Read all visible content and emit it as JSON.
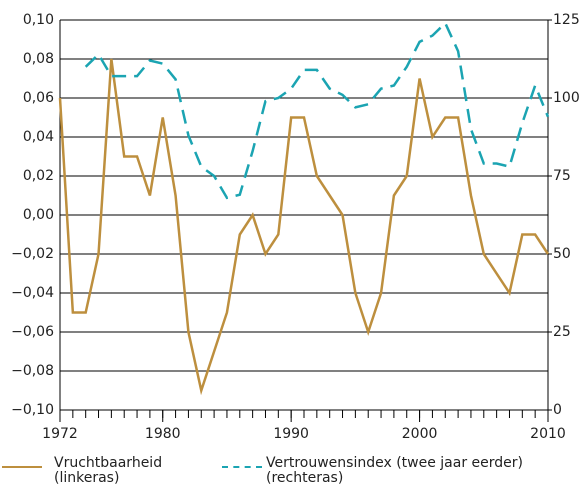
{
  "chart_data": {
    "type": "line",
    "x": [
      1972,
      1973,
      1974,
      1975,
      1976,
      1977,
      1978,
      1979,
      1980,
      1981,
      1982,
      1983,
      1984,
      1985,
      1986,
      1987,
      1988,
      1989,
      1990,
      1991,
      1992,
      1993,
      1994,
      1995,
      1996,
      1997,
      1998,
      1999,
      2000,
      2001,
      2002,
      2003,
      2004,
      2005,
      2006,
      2007,
      2008,
      2009,
      2010
    ],
    "series": [
      {
        "name": "Vruchtbaarheid\n(linkeras)",
        "color": "#bd8f3e",
        "linestyle": "solid",
        "values": [
          0.06,
          -0.05,
          -0.05,
          -0.02,
          0.08,
          0.03,
          0.03,
          0.01,
          0.05,
          0.01,
          -0.06,
          -0.09,
          -0.07,
          -0.05,
          -0.01,
          0.0,
          -0.02,
          -0.01,
          0.05,
          0.05,
          0.02,
          0.01,
          0.0,
          -0.04,
          -0.06,
          -0.04,
          0.01,
          0.02,
          0.07,
          0.04,
          0.05,
          0.05,
          0.01,
          -0.02,
          -0.03,
          -0.04,
          -0.01,
          -0.01,
          -0.02
        ]
      },
      {
        "name": "Vertrouwensindex (twee jaar eerder)\n(rechteras)",
        "color": "#1ba4b2",
        "linestyle": "dashed",
        "axis": "y2",
        "values": [
          null,
          null,
          110,
          114,
          107,
          107,
          107,
          112,
          111,
          106,
          88,
          78,
          75,
          68,
          69,
          83,
          99,
          100,
          103,
          109,
          109,
          103,
          101,
          97,
          98,
          103,
          104,
          110,
          118,
          120,
          124,
          115,
          90,
          79,
          79,
          78,
          92,
          104,
          94
        ]
      }
    ],
    "xlim": [
      1972,
      2010
    ],
    "xticks": [
      1972,
      1980,
      1990,
      2000,
      2010
    ],
    "ylim": [
      -0.1,
      0.1
    ],
    "yticks": [
      {
        "value": -0.1,
        "label": "−0,10"
      },
      {
        "value": -0.08,
        "label": "−0,08"
      },
      {
        "value": -0.06,
        "label": "−0,06"
      },
      {
        "value": -0.04,
        "label": "−0,04"
      },
      {
        "value": -0.02,
        "label": "−0,02"
      },
      {
        "value": 0.0,
        "label": "0,00"
      },
      {
        "value": 0.02,
        "label": "0,02"
      },
      {
        "value": 0.04,
        "label": "0,04"
      },
      {
        "value": 0.06,
        "label": "0,06"
      },
      {
        "value": 0.08,
        "label": "0,08"
      },
      {
        "value": 0.1,
        "label": "0,10"
      }
    ],
    "y2lim": [
      0,
      125
    ],
    "y2ticks": [
      0,
      25,
      50,
      75,
      100,
      125
    ],
    "grid": true
  }
}
